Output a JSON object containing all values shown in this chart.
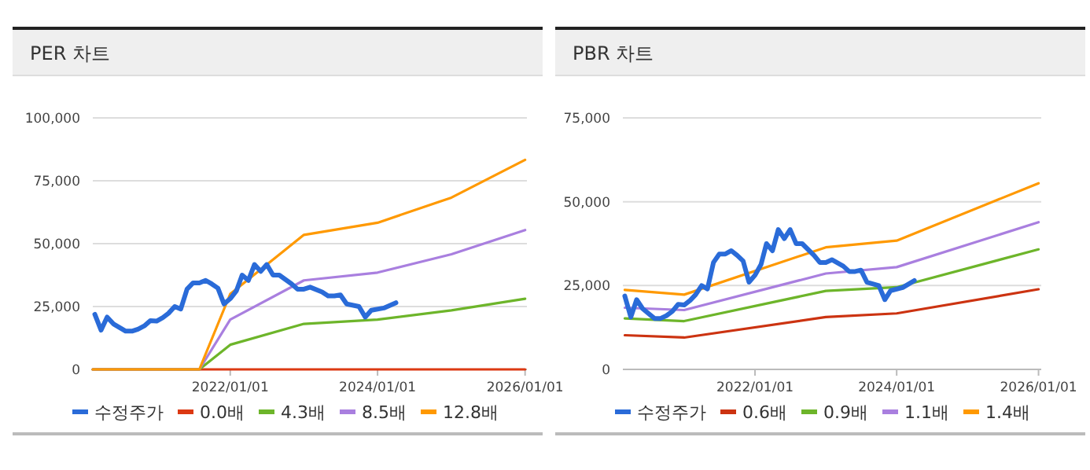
{
  "chart_data": [
    {
      "type": "line",
      "title": "PER 차트",
      "grid": "y",
      "legend": "bottom",
      "xlim": [
        "2020-02-20",
        "2026-01-10"
      ],
      "xticks": [
        {
          "value": "2022-01-01",
          "label": "2022/01/01"
        },
        {
          "value": "2024-01-01",
          "label": "2024/01/01"
        },
        {
          "value": "2026-01-01",
          "label": "2026/01/01"
        }
      ],
      "ylim": [
        0,
        100000
      ],
      "yticks": [
        {
          "value": 0,
          "label": "0"
        },
        {
          "value": 25000,
          "label": "25,000"
        },
        {
          "value": 50000,
          "label": "50,000"
        },
        {
          "value": 75000,
          "label": "75,000"
        },
        {
          "value": 100000,
          "label": "100,000"
        }
      ],
      "series": [
        {
          "name": "수정주가",
          "color": "#2a6bd8",
          "x": [
            "2020-03",
            "2020-04",
            "2020-05",
            "2020-06",
            "2020-08",
            "2020-09",
            "2020-10",
            "2020-11",
            "2020-12",
            "2021-01",
            "2021-02",
            "2021-03",
            "2021-04",
            "2021-05",
            "2021-06",
            "2021-07",
            "2021-08",
            "2021-09",
            "2021-10",
            "2021-11",
            "2021-12",
            "2022-01",
            "2022-02",
            "2022-03",
            "2022-04",
            "2022-05",
            "2022-06",
            "2022-07",
            "2022-08",
            "2022-09",
            "2022-11",
            "2022-12",
            "2023-01",
            "2023-02",
            "2023-04",
            "2023-05",
            "2023-06",
            "2023-07",
            "2023-08",
            "2023-10",
            "2023-11",
            "2023-12",
            "2024-02",
            "2024-03",
            "2024-04"
          ],
          "values": [
            21900,
            15600,
            20800,
            18100,
            15200,
            15200,
            16000,
            17300,
            19400,
            19200,
            20600,
            22300,
            25000,
            24000,
            31900,
            34400,
            34400,
            35400,
            34000,
            32300,
            26000,
            28100,
            31300,
            37500,
            35400,
            41700,
            39000,
            41700,
            37500,
            37500,
            34000,
            31900,
            31900,
            32700,
            30800,
            29200,
            29200,
            29600,
            26000,
            25000,
            20800,
            23500,
            24400,
            25400,
            26500
          ]
        },
        {
          "name": "0.0배",
          "color": "#dc3912",
          "x": [
            "2020-02-20",
            "2021-08",
            "2022-01",
            "2023-01",
            "2024-01",
            "2025-01",
            "2026-01"
          ],
          "values": [
            0,
            0,
            0,
            0,
            0,
            0,
            0
          ]
        },
        {
          "name": "4.3배",
          "color": "#6db52a",
          "x": [
            "2020-02-20",
            "2021-08",
            "2022-01",
            "2023-01",
            "2024-01",
            "2025-01",
            "2026-01"
          ],
          "values": [
            0,
            0,
            9800,
            18100,
            19800,
            23500,
            28100
          ]
        },
        {
          "name": "8.5배",
          "color": "#a97fdf",
          "x": [
            "2020-02-20",
            "2021-08",
            "2022-01",
            "2023-01",
            "2024-01",
            "2025-01",
            "2026-01"
          ],
          "values": [
            0,
            0,
            19800,
            35400,
            38500,
            45800,
            55400
          ]
        },
        {
          "name": "12.8배",
          "color": "#ff9900",
          "x": [
            "2020-02-20",
            "2021-08",
            "2022-01",
            "2023-01",
            "2024-01",
            "2025-01",
            "2026-01"
          ],
          "values": [
            0,
            0,
            30000,
            53500,
            58300,
            68300,
            83300
          ]
        }
      ]
    },
    {
      "type": "line",
      "title": "PBR 차트",
      "grid": "y",
      "legend": "bottom",
      "xlim": [
        "2020-02-20",
        "2026-01-15"
      ],
      "xticks": [
        {
          "value": "2022-01-01",
          "label": "2022/01/01"
        },
        {
          "value": "2024-01-01",
          "label": "2024/01/01"
        },
        {
          "value": "2026-01-01",
          "label": "2026/01/01"
        }
      ],
      "ylim": [
        0,
        75000
      ],
      "yticks": [
        {
          "value": 0,
          "label": "0"
        },
        {
          "value": 25000,
          "label": "25,000"
        },
        {
          "value": 50000,
          "label": "50,000"
        },
        {
          "value": 75000,
          "label": "75,000"
        }
      ],
      "series": [
        {
          "name": "수정주가",
          "color": "#2a6bd8",
          "x": [
            "2020-03",
            "2020-04",
            "2020-05",
            "2020-06",
            "2020-08",
            "2020-09",
            "2020-10",
            "2020-11",
            "2020-12",
            "2021-01",
            "2021-02",
            "2021-03",
            "2021-04",
            "2021-05",
            "2021-06",
            "2021-07",
            "2021-08",
            "2021-09",
            "2021-10",
            "2021-11",
            "2021-12",
            "2022-01",
            "2022-02",
            "2022-03",
            "2022-04",
            "2022-05",
            "2022-06",
            "2022-07",
            "2022-08",
            "2022-09",
            "2022-11",
            "2022-12",
            "2023-01",
            "2023-02",
            "2023-04",
            "2023-05",
            "2023-06",
            "2023-07",
            "2023-08",
            "2023-10",
            "2023-11",
            "2023-12",
            "2024-02",
            "2024-03",
            "2024-04"
          ],
          "values": [
            21900,
            15600,
            20800,
            18100,
            15200,
            15200,
            16000,
            17300,
            19400,
            19200,
            20600,
            22300,
            25000,
            24000,
            31900,
            34400,
            34400,
            35400,
            34000,
            32300,
            26000,
            28100,
            31300,
            37500,
            35400,
            41700,
            39000,
            41700,
            37500,
            37500,
            34000,
            31900,
            31900,
            32700,
            30800,
            29200,
            29200,
            29600,
            26000,
            25000,
            20800,
            23500,
            24400,
            25400,
            26500
          ]
        },
        {
          "name": "0.6배",
          "color": "#cc3311",
          "x": [
            "2020-03",
            "2021-01",
            "2023-01",
            "2024-01",
            "2026-01"
          ],
          "values": [
            10200,
            9500,
            15600,
            16700,
            23900
          ]
        },
        {
          "name": "0.9배",
          "color": "#6db52a",
          "x": [
            "2020-03",
            "2021-01",
            "2023-01",
            "2024-01",
            "2026-01"
          ],
          "values": [
            15200,
            14400,
            23400,
            24500,
            35800
          ]
        },
        {
          "name": "1.1배",
          "color": "#a97fdf",
          "x": [
            "2020-03",
            "2021-01",
            "2023-01",
            "2024-01",
            "2026-01"
          ],
          "values": [
            18400,
            17700,
            28600,
            30500,
            43900
          ]
        },
        {
          "name": "1.4배",
          "color": "#ff9900",
          "x": [
            "2020-03",
            "2021-01",
            "2023-01",
            "2024-01",
            "2026-01"
          ],
          "values": [
            23700,
            22300,
            36400,
            38400,
            55500
          ]
        }
      ]
    }
  ]
}
